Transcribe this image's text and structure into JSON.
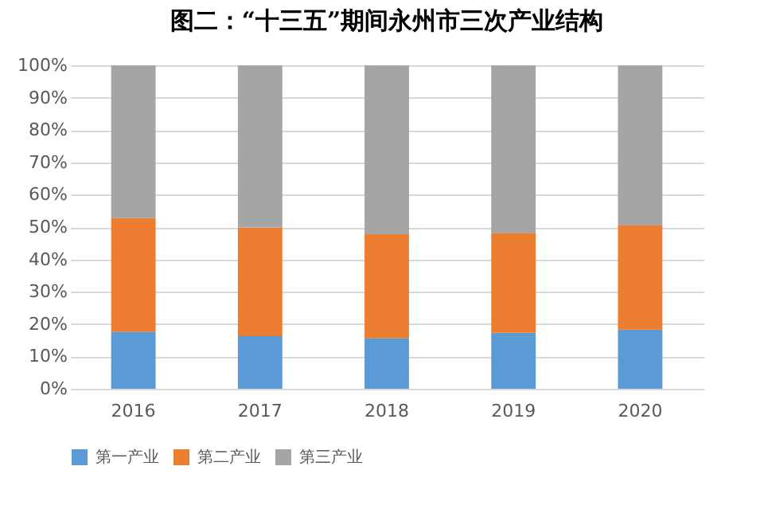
{
  "chart_data": {
    "type": "bar",
    "title": "图二：“十三五”期间永州市三次产业结构",
    "categories": [
      "2016",
      "2017",
      "2018",
      "2019",
      "2020"
    ],
    "stacked": true,
    "series": [
      {
        "name": "第一产业",
        "color": "#5b9bd5",
        "values": [
          17.7,
          16.5,
          15.7,
          17.3,
          18.4
        ]
      },
      {
        "name": "第二产业",
        "color": "#ed7d31",
        "values": [
          35.1,
          33.4,
          32.1,
          30.9,
          32.3
        ]
      },
      {
        "name": "第三产业",
        "color": "#a5a5a5",
        "values": [
          47.2,
          50.1,
          52.2,
          51.8,
          49.3
        ]
      }
    ],
    "ylim": [
      0,
      100
    ],
    "yticks": [
      {
        "value": 0,
        "label": "0%"
      },
      {
        "value": 10,
        "label": "10%"
      },
      {
        "value": 20,
        "label": "20%"
      },
      {
        "value": 30,
        "label": "30%"
      },
      {
        "value": 40,
        "label": "40%"
      },
      {
        "value": 50,
        "label": "50%"
      },
      {
        "value": 60,
        "label": "60%"
      },
      {
        "value": 70,
        "label": "70%"
      },
      {
        "value": 80,
        "label": "80%"
      },
      {
        "value": 90,
        "label": "90%"
      },
      {
        "value": 100,
        "label": "100%"
      }
    ],
    "grid": "y",
    "legend": "bottom"
  }
}
